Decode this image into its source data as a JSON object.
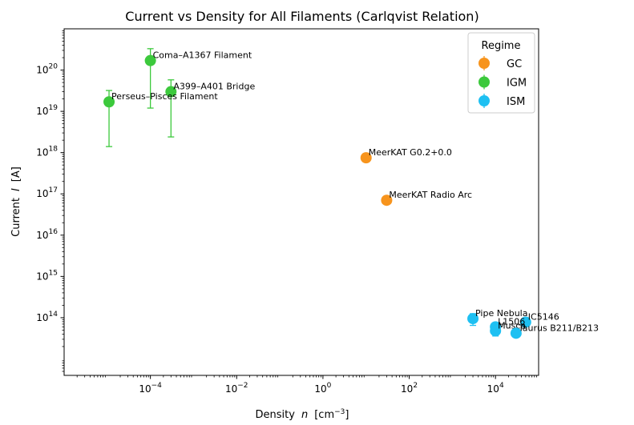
{
  "chart_data": {
    "type": "scatter",
    "title": "Current vs Density for All Filaments (Carlqvist Relation)",
    "xlabel": "Density",
    "xlabel_var": "n",
    "xlabel_unit": "[cm",
    "xlabel_unit_exp": "−3",
    "xlabel_unit_close": "]",
    "ylabel": "Current",
    "ylabel_var": "I",
    "ylabel_unit": "[A]",
    "x_scale": "log",
    "y_scale": "log",
    "xlim": [
      1e-06,
      100000.0
    ],
    "ylim": [
      4000000000000.0,
      1e+21
    ],
    "x_ticks": [
      {
        "value": 0.0001,
        "base": "10",
        "exp": "−4"
      },
      {
        "value": 0.01,
        "base": "10",
        "exp": "−2"
      },
      {
        "value": 1.0,
        "base": "10",
        "exp": "0"
      },
      {
        "value": 100.0,
        "base": "10",
        "exp": "2"
      },
      {
        "value": 10000.0,
        "base": "10",
        "exp": "4"
      }
    ],
    "y_ticks": [
      {
        "value": 100000000000000.0,
        "base": "10",
        "exp": "14"
      },
      {
        "value": 1000000000000000.0,
        "base": "10",
        "exp": "15"
      },
      {
        "value": 1e+16,
        "base": "10",
        "exp": "16"
      },
      {
        "value": 1e+17,
        "base": "10",
        "exp": "17"
      },
      {
        "value": 1e+18,
        "base": "10",
        "exp": "18"
      },
      {
        "value": 1e+19,
        "base": "10",
        "exp": "19"
      },
      {
        "value": 1e+20,
        "base": "10",
        "exp": "20"
      }
    ],
    "grid": false,
    "legend": {
      "title": "Regime",
      "placement": "top-right"
    },
    "series": [
      {
        "name": "GC",
        "color": "#f7941d",
        "points": [
          {
            "label": "MeerKAT G0.2+0.0",
            "x": 10,
            "y": 7.5e+17,
            "yerr": [
              6e+17,
              9.5e+17
            ]
          },
          {
            "label": "MeerKAT Radio Arc",
            "x": 30,
            "y": 7e+16,
            "yerr": [
              6e+16,
              8.2e+16
            ]
          }
        ]
      },
      {
        "name": "IGM",
        "color": "#3cc93c",
        "points": [
          {
            "label": "Coma–A1367 Filament",
            "x": 0.0001,
            "y": 1.7e+20,
            "yerr": [
              1.2e+19,
              3.3e+20
            ]
          },
          {
            "label": "A399–A401 Bridge",
            "x": 0.0003,
            "y": 3e+19,
            "yerr": [
              2.4e+18,
              5.8e+19
            ]
          },
          {
            "label": "Perseus–Pisces Filament",
            "x": 1.1e-05,
            "y": 1.7e+19,
            "yerr": [
              1.4e+18,
              3.2e+19
            ]
          }
        ]
      },
      {
        "name": "ISM",
        "color": "#1ec0f2",
        "points": [
          {
            "label": "Pipe Nebula",
            "x": 3000.0,
            "y": 95000000000000.0,
            "yerr": [
              65000000000000.0,
              125000000000000.0
            ]
          },
          {
            "label": "IC5146",
            "x": 50000.0,
            "y": 78000000000000.0,
            "yerr": [
              63000000000000.0,
              95000000000000.0
            ]
          },
          {
            "label": "L1506",
            "x": 10000.0,
            "y": 60000000000000.0,
            "yerr": [
              48000000000000.0,
              74000000000000.0
            ]
          },
          {
            "label": "Musca",
            "x": 10000.0,
            "y": 48000000000000.0,
            "yerr": [
              36000000000000.0,
              60000000000000.0
            ]
          },
          {
            "label": "Taurus B211/B213",
            "x": 30000.0,
            "y": 42000000000000.0,
            "yerr": [
              34000000000000.0,
              50000000000000.0
            ]
          }
        ]
      }
    ]
  }
}
